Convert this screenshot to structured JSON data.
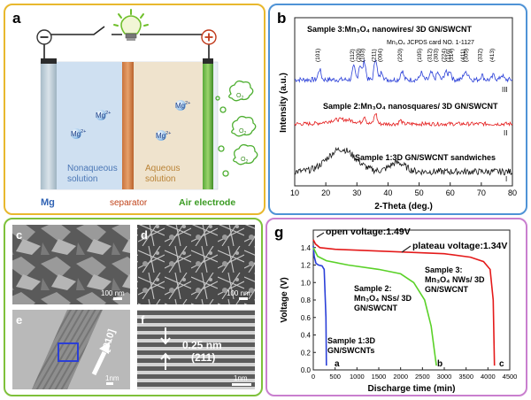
{
  "panel_a": {
    "letter": "a",
    "minus": "⊖",
    "plus": "⊕",
    "anode_label": "Mg",
    "separator_label": "separator",
    "cathode_label": "Air electrode",
    "left_solution": [
      "Nonaqueous",
      "solution"
    ],
    "right_solution": [
      "Aqueous",
      "solution"
    ],
    "ion": "Mg",
    "ion_charge": "2+",
    "gas": "O",
    "gas_sub": "2"
  },
  "panel_b": {
    "letter": "b",
    "ylabel": "Intensity (a.u.)",
    "xlabel": "2-Theta (deg.)",
    "sample3": "Sample 3:Mn₃O₄ nanowires/ 3D GN/SWCNT",
    "sample2": "Sample 2:Mn₃O₄ nanosquares/ 3D GN/SWCNT",
    "sample1": "Sample 1:3D GN/SWCNT sandwiches",
    "jcpds": "Mn₃O₄ JCPDS card NO. 1-1127",
    "roman": [
      "III",
      "II",
      "I"
    ],
    "peaks": [
      "(101)",
      "(112)",
      "(200)",
      "(103)",
      "(211)",
      "(004)",
      "(220)",
      "(105)",
      "(312)",
      "(303)",
      "(224)",
      "(116)",
      "(314)",
      "(411)",
      "(305)",
      "(332)",
      "(413)"
    ]
  },
  "panel_images": {
    "letters": [
      "c",
      "d",
      "e",
      "f"
    ],
    "scale_c": "100 nm",
    "scale_d": "100 nm",
    "scale_e": "1nm",
    "scale_f": "1nm",
    "e_label": "[010]",
    "f_spacing": "0.25 nm",
    "f_plane": "(211)"
  },
  "panel_g": {
    "letter": "g",
    "ylabel": "Voltage (V)",
    "xlabel": "Discharge time (min)",
    "open_voltage": "open voltage:1.49V",
    "plateau_voltage": "plateau voltage:1.34V",
    "s3": [
      "Sample 3:",
      "Mn₃O₄ NWs/ 3D",
      "GN/SWCNT"
    ],
    "s2": [
      "Sample 2:",
      "Mn₃O₄ NSs/ 3D",
      "GN/SWCNT"
    ],
    "s1": [
      "Sample 1:3D",
      "GN/SWCNTs"
    ],
    "curve_letters": [
      "a",
      "b",
      "c"
    ]
  },
  "chart_data": [
    {
      "type": "line",
      "title": "",
      "xlabel": "2-Theta (deg.)",
      "ylabel": "Intensity (a.u.)",
      "xlim": [
        10,
        80
      ],
      "x_ticks": [
        10,
        20,
        30,
        40,
        50,
        60,
        70,
        80
      ],
      "series": [
        {
          "name": "Sample 3:Mn₃O₄ nanowires/ 3D GN/SWCNT",
          "color": "#2a3fd8",
          "peaks": [
            [
              18,
              0.45
            ],
            [
              29,
              0.55
            ],
            [
              31,
              0.65
            ],
            [
              32.4,
              0.8
            ],
            [
              36,
              0.95
            ],
            [
              38,
              0.35
            ],
            [
              44.5,
              0.4
            ],
            [
              50.7,
              0.3
            ],
            [
              53.9,
              0.3
            ],
            [
              56,
              0.3
            ],
            [
              58.5,
              0.35
            ],
            [
              59.9,
              0.4
            ],
            [
              64.6,
              0.3
            ],
            [
              65.7,
              0.25
            ],
            [
              70.2,
              0.2
            ],
            [
              74,
              0.2
            ],
            [
              76.6,
              0.2
            ]
          ]
        },
        {
          "name": "Sample 2:Mn₃O₄ nanosquares/ 3D GN/SWCNT",
          "color": "#e41a1a",
          "peaks": [
            [
              25,
              0.25
            ],
            [
              32.4,
              0.4
            ],
            [
              36,
              0.6
            ],
            [
              44,
              0.2
            ]
          ]
        },
        {
          "name": "Sample 1:3D GN/SWCNT sandwiches",
          "color": "#111111",
          "peaks": [
            [
              25,
              0.75
            ],
            [
              43,
              0.3
            ]
          ]
        }
      ]
    },
    {
      "type": "line",
      "title": "",
      "xlabel": "Discharge time (min)",
      "ylabel": "Voltage (V)",
      "xlim": [
        0,
        4500
      ],
      "ylim": [
        0.0,
        1.6
      ],
      "x_ticks": [
        0,
        500,
        1000,
        1500,
        2000,
        2500,
        3000,
        3500,
        4000,
        4500
      ],
      "y_ticks": [
        0.0,
        0.2,
        0.4,
        0.6,
        0.8,
        1.0,
        1.2,
        1.4
      ],
      "series": [
        {
          "name": "a",
          "color": "#2a3fd8",
          "points": [
            [
              0,
              1.42
            ],
            [
              20,
              1.3
            ],
            [
              60,
              1.22
            ],
            [
              120,
              1.2
            ],
            [
              200,
              1.19
            ],
            [
              250,
              1.15
            ],
            [
              290,
              0.6
            ],
            [
              300,
              0.05
            ]
          ]
        },
        {
          "name": "b",
          "color": "#5ad128",
          "points": [
            [
              0,
              1.4
            ],
            [
              100,
              1.3
            ],
            [
              300,
              1.25
            ],
            [
              800,
              1.2
            ],
            [
              1500,
              1.15
            ],
            [
              2000,
              1.1
            ],
            [
              2300,
              1.0
            ],
            [
              2550,
              0.8
            ],
            [
              2700,
              0.5
            ],
            [
              2780,
              0.2
            ],
            [
              2820,
              0.05
            ]
          ]
        },
        {
          "name": "c",
          "color": "#e41a1a",
          "points": [
            [
              0,
              1.49
            ],
            [
              50,
              1.44
            ],
            [
              150,
              1.4
            ],
            [
              500,
              1.38
            ],
            [
              1000,
              1.37
            ],
            [
              2000,
              1.35
            ],
            [
              3000,
              1.33
            ],
            [
              3600,
              1.29
            ],
            [
              3900,
              1.24
            ],
            [
              4050,
              1.15
            ],
            [
              4120,
              0.8
            ],
            [
              4150,
              0.05
            ]
          ]
        }
      ]
    }
  ]
}
